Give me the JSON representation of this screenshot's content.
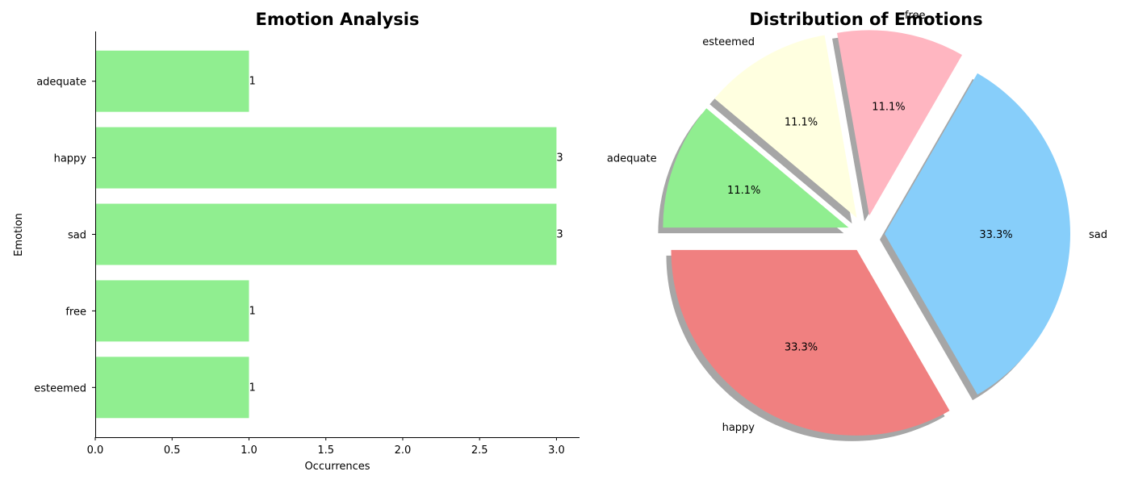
{
  "chart_data": [
    {
      "type": "bar",
      "orientation": "horizontal",
      "title": "Emotion Analysis",
      "xlabel": "Occurrences",
      "ylabel": "Emotion",
      "categories": [
        "adequate",
        "happy",
        "sad",
        "free",
        "esteemed"
      ],
      "values": [
        1,
        3,
        3,
        1,
        1
      ],
      "value_labels": [
        "1",
        "3",
        "3",
        "1",
        "1"
      ],
      "xlim": [
        0,
        3.15
      ],
      "xticks": [
        0.0,
        0.5,
        1.0,
        1.5,
        2.0,
        2.5,
        3.0
      ],
      "xtick_labels": [
        "0.0",
        "0.5",
        "1.0",
        "1.5",
        "2.0",
        "2.5",
        "3.0"
      ],
      "bar_color": "#90ee90"
    },
    {
      "type": "pie",
      "title": "Distribution of Emotions",
      "labels": [
        "adequate",
        "esteemed",
        "free",
        "sad",
        "happy"
      ],
      "values": [
        1,
        1,
        1,
        3,
        3
      ],
      "pct_labels": [
        "11.1%",
        "11.1%",
        "11.1%",
        "33.3%",
        "33.3%"
      ],
      "colors": [
        "#90ee90",
        "#ffffe0",
        "#ffb6c1",
        "#87cefa",
        "#f08080"
      ],
      "explode": [
        0.1,
        0.1,
        0.1,
        0.1,
        0.1
      ],
      "shadow": true
    }
  ]
}
